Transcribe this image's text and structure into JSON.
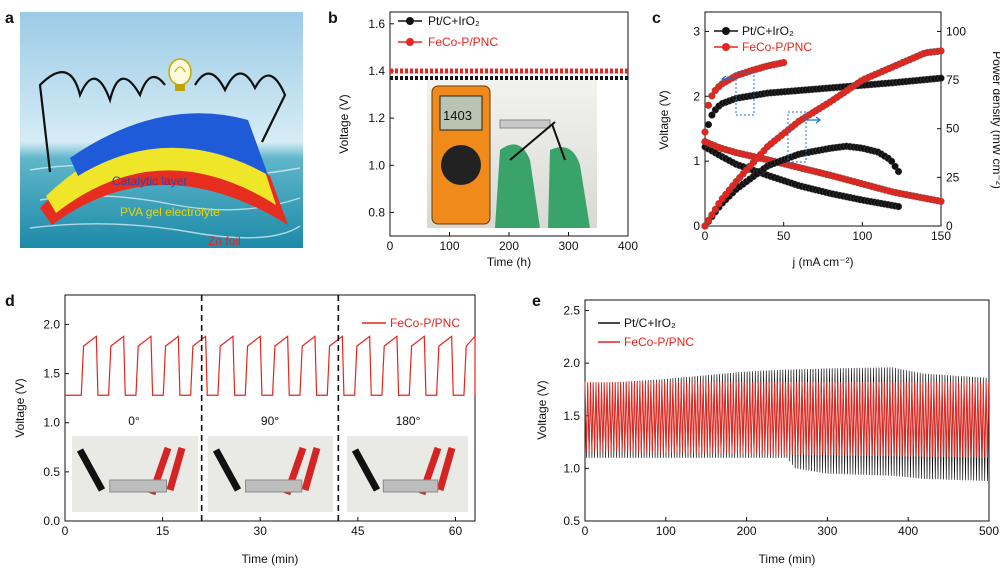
{
  "colors": {
    "red": "#e8241c",
    "black": "#111111",
    "blue": "#1a4bbf",
    "guide": "#1f6fd0"
  },
  "panel_a": {
    "letter": "a",
    "labels": {
      "catalytic": "Catalytic layer",
      "pva": "PVA gel electrolyte",
      "zn": "Zn foil"
    },
    "icons": [
      "light-bulb-icon"
    ]
  },
  "panel_b": {
    "letter": "b",
    "photo_reading": "1403"
  },
  "panel_c": {
    "letter": "c"
  },
  "panel_d": {
    "letter": "d",
    "angles": [
      "0°",
      "90°",
      "180°"
    ]
  },
  "panel_e": {
    "letter": "e"
  },
  "chart_data": [
    {
      "id": "b",
      "type": "line",
      "xlabel": "Time (h)",
      "ylabel": "Voltage (V)",
      "xlim": [
        0,
        400
      ],
      "ylim": [
        0.7,
        1.65
      ],
      "xticks": [
        0,
        100,
        200,
        300,
        400
      ],
      "yticks": [
        0.8,
        1.0,
        1.2,
        1.4,
        1.6
      ],
      "series": [
        {
          "name": "Pt/C+IrO₂",
          "color": "#111111",
          "x": [
            0,
            400
          ],
          "y": [
            1.37,
            1.37
          ]
        },
        {
          "name": "FeCo-P/PNC",
          "color": "#e8241c",
          "x": [
            0,
            400
          ],
          "y": [
            1.4,
            1.4
          ]
        }
      ]
    },
    {
      "id": "c",
      "type": "line",
      "xlabel": "j (mA cm⁻²)",
      "ylabel": "Voltage (V)",
      "y2label": "Power density (mW cm⁻²)",
      "xlim": [
        0,
        150
      ],
      "ylim": [
        0,
        3.3
      ],
      "y2lim": [
        0,
        110
      ],
      "xticks": [
        0,
        50,
        100,
        150
      ],
      "yticks": [
        0,
        1,
        2,
        3
      ],
      "y2ticks": [
        0,
        25,
        50,
        75,
        100
      ],
      "series": [
        {
          "name": "Pt/C+IrO₂",
          "color": "#111111",
          "role": "charge",
          "x": [
            0,
            2,
            5,
            10,
            20,
            40,
            60,
            80,
            100,
            120,
            150
          ],
          "y": [
            1.3,
            1.55,
            1.75,
            1.88,
            1.97,
            2.05,
            2.09,
            2.13,
            2.17,
            2.21,
            2.28
          ]
        },
        {
          "name": "FeCo-P/PNC",
          "color": "#e8241c",
          "role": "charge",
          "x": [
            0,
            2,
            5,
            10,
            20,
            30,
            40,
            50
          ],
          "y": [
            1.45,
            1.85,
            2.05,
            2.18,
            2.32,
            2.4,
            2.47,
            2.52
          ]
        },
        {
          "name": "Pt/C+IrO₂",
          "color": "#111111",
          "role": "discharge",
          "x": [
            0,
            5,
            10,
            20,
            40,
            60,
            80,
            100,
            123
          ],
          "y": [
            1.22,
            1.15,
            1.08,
            0.95,
            0.78,
            0.62,
            0.5,
            0.4,
            0.3
          ]
        },
        {
          "name": "FeCo-P/PNC",
          "color": "#e8241c",
          "role": "discharge",
          "x": [
            0,
            5,
            10,
            20,
            40,
            60,
            80,
            100,
            120,
            150
          ],
          "y": [
            1.3,
            1.25,
            1.2,
            1.13,
            1.02,
            0.9,
            0.78,
            0.65,
            0.52,
            0.38
          ]
        },
        {
          "name": "Pt/C+IrO₂",
          "color": "#111111",
          "role": "power",
          "axis": "y2",
          "x": [
            0,
            10,
            20,
            40,
            60,
            80,
            90,
            100,
            110,
            118,
            123
          ],
          "y": [
            0,
            11,
            19,
            31,
            37,
            40,
            41,
            40,
            38,
            34,
            28
          ]
        },
        {
          "name": "FeCo-P/PNC",
          "color": "#e8241c",
          "role": "power",
          "axis": "y2",
          "x": [
            0,
            10,
            20,
            40,
            60,
            80,
            100,
            120,
            140,
            150
          ],
          "y": [
            0,
            13,
            23,
            41,
            54,
            64,
            75,
            82,
            89,
            90
          ]
        }
      ]
    },
    {
      "id": "d",
      "type": "line",
      "xlabel": "Time (min)",
      "ylabel": "Voltage (V)",
      "xlim": [
        0,
        63
      ],
      "ylim": [
        0,
        2.3
      ],
      "xticks": [
        0,
        15,
        30,
        45,
        60
      ],
      "yticks": [
        0.0,
        0.5,
        1.0,
        1.5,
        2.0
      ],
      "dividers": [
        21,
        42
      ],
      "series": [
        {
          "name": "FeCo-P/PNC",
          "color": "#e8241c",
          "pattern": {
            "cycle_min": 4.2,
            "start_min": 2.5,
            "low": 1.28,
            "high": 1.88
          }
        }
      ]
    },
    {
      "id": "e",
      "type": "line",
      "xlabel": "Time (min)",
      "ylabel": "Voltage (V)",
      "xlim": [
        0,
        500
      ],
      "ylim": [
        0.5,
        2.6
      ],
      "xticks": [
        0,
        100,
        200,
        300,
        400,
        500
      ],
      "yticks": [
        0.5,
        1.0,
        1.5,
        2.0,
        2.5
      ],
      "series": [
        {
          "name": "Pt/C+IrO₂",
          "color": "#111111",
          "envelope_x": [
            0,
            100,
            200,
            250,
            260,
            300,
            380,
            420,
            500
          ],
          "envelope_high": [
            1.8,
            1.85,
            1.92,
            1.94,
            1.94,
            1.95,
            1.96,
            1.9,
            1.86
          ],
          "envelope_low": [
            1.1,
            1.1,
            1.1,
            1.1,
            1.0,
            0.95,
            0.93,
            0.9,
            0.88
          ]
        },
        {
          "name": "FeCo-P/PNC",
          "color": "#e8241c",
          "envelope_x": [
            0,
            500
          ],
          "envelope_high": [
            1.82,
            1.82
          ],
          "envelope_low": [
            1.16,
            1.1
          ]
        }
      ]
    }
  ]
}
